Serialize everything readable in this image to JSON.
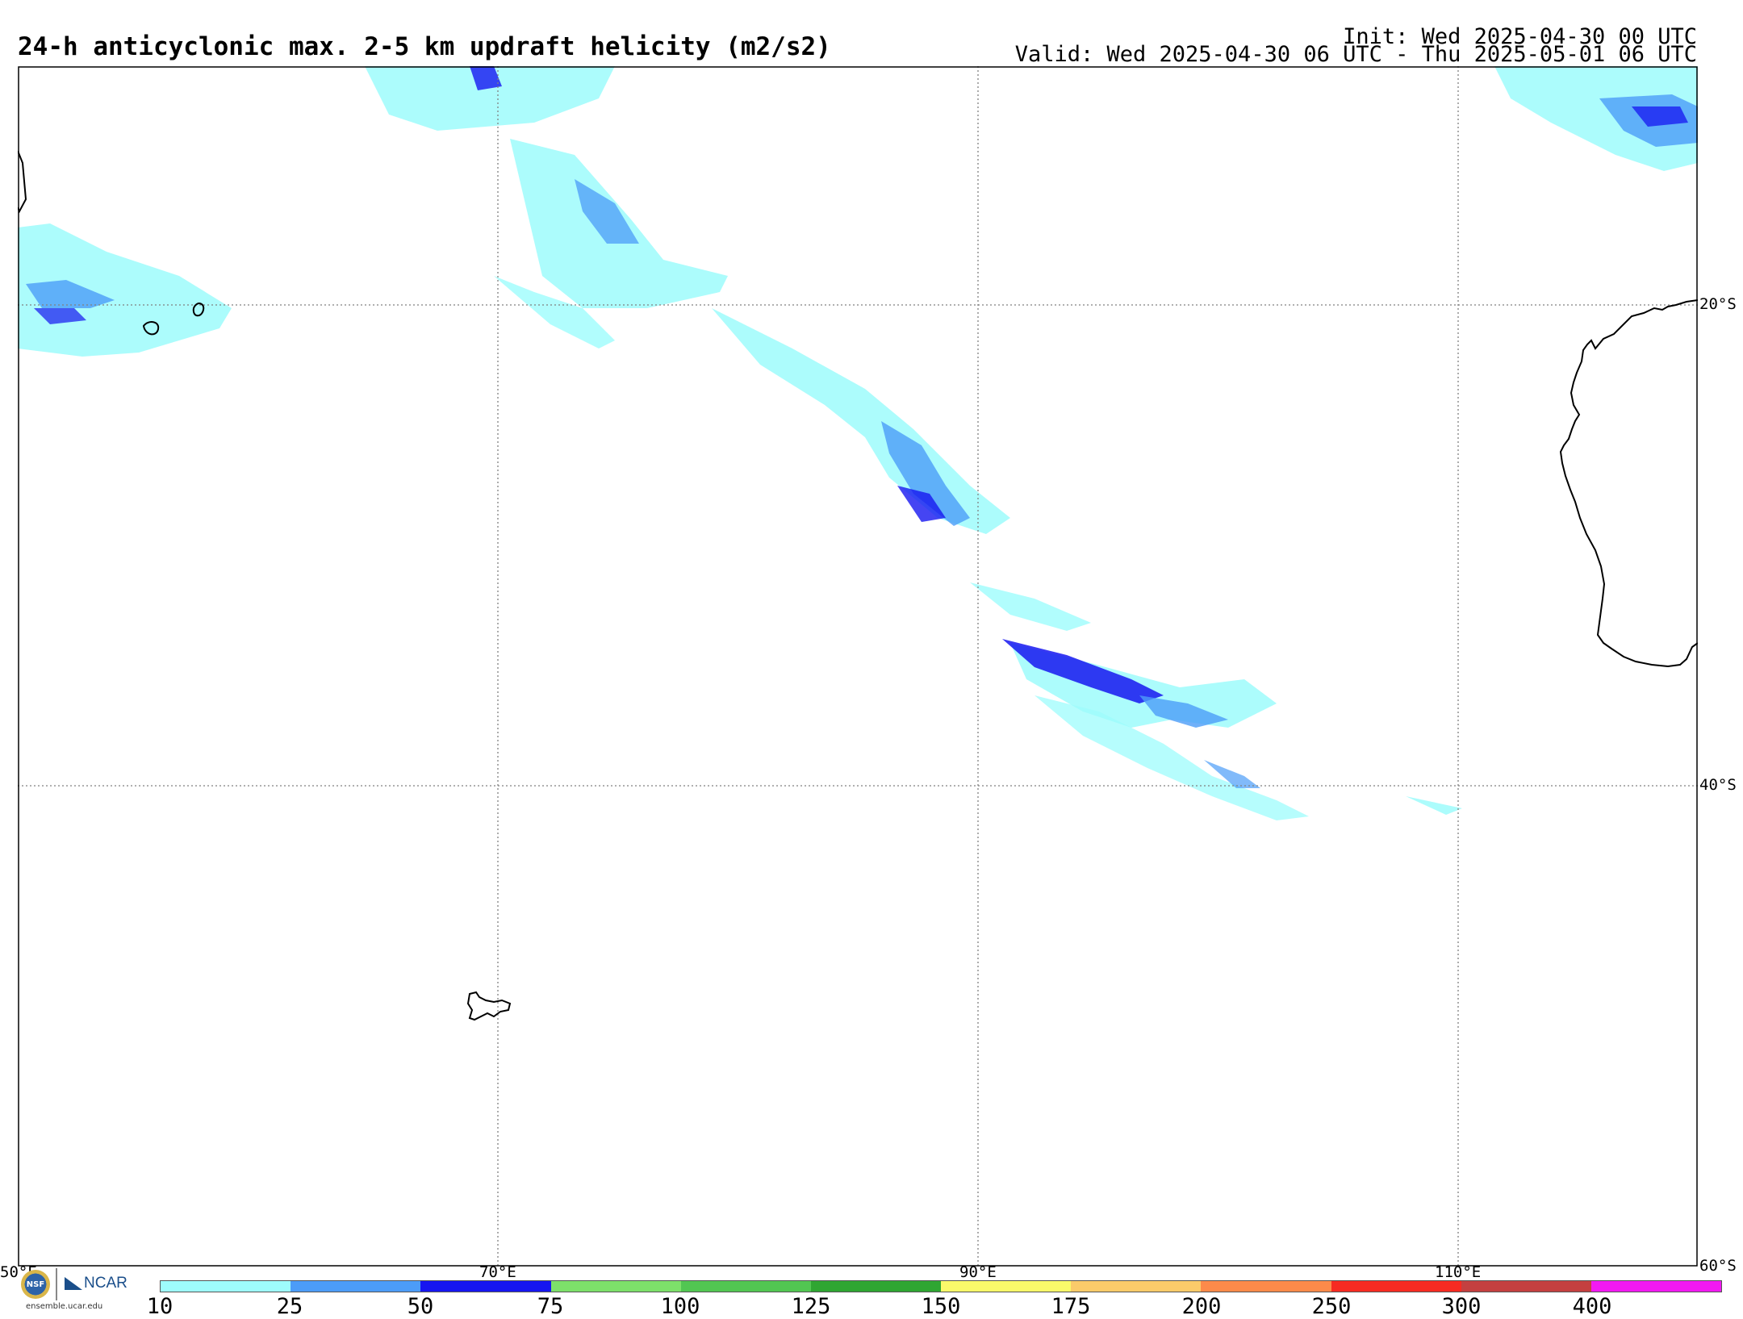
{
  "header": {
    "title": "24-h anticyclonic max. 2-5 km updraft helicity (m2/s2)",
    "init": "Init: Wed 2025-04-30 00 UTC",
    "valid": "Valid: Wed 2025-04-30 06 UTC - Thu 2025-05-01 06 UTC"
  },
  "map": {
    "lon_range": [
      50,
      120
    ],
    "lat_range": [
      -60,
      -10
    ],
    "grid_lons": [
      70,
      90,
      110
    ],
    "grid_lats": [
      -20,
      -40
    ],
    "lon_labels": [
      "50°E",
      "70°E",
      "90°E",
      "110°E"
    ],
    "lat_labels": [
      "20°S",
      "40°S",
      "60°S"
    ],
    "features": [
      "madagascar-coast",
      "mauritius-island",
      "reunion-island",
      "kerguelen-islands",
      "western-australia-coast"
    ],
    "colors": {
      "coast": "#000000",
      "grid": "#808080",
      "frame": "#000000"
    }
  },
  "colorbar": {
    "ticks": [
      "10",
      "25",
      "50",
      "75",
      "100",
      "125",
      "150",
      "175",
      "200",
      "250",
      "300",
      "400"
    ],
    "colors": [
      "#9efcfc",
      "#4c9cf8",
      "#1616f0",
      "#7de06a",
      "#52c652",
      "#2fa632",
      "#fafa6a",
      "#fbcb6a",
      "#fc8a4a",
      "#f62b22",
      "#c44040",
      "#f21af2"
    ]
  },
  "logos": {
    "nsf": "NSF",
    "ncar": "NCAR",
    "url": "ensemble.ucar.edu"
  }
}
